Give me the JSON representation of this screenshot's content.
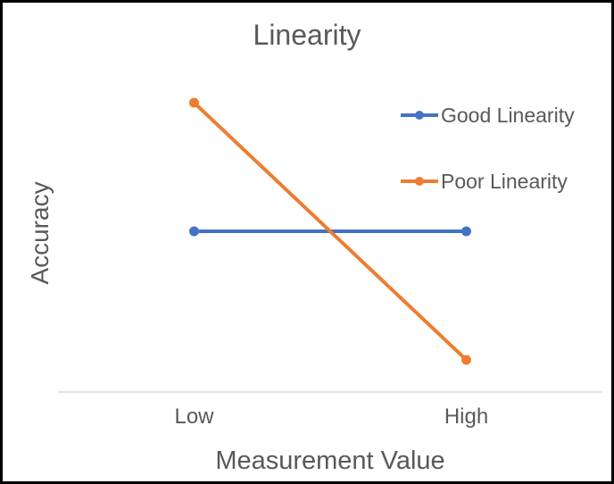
{
  "chart_data": {
    "type": "line",
    "title": "Linearity",
    "xlabel": "Measurement Value",
    "ylabel": "Accuracy",
    "categories": [
      "Low",
      "High"
    ],
    "series": [
      {
        "name": "Good Linearity",
        "values": [
          0.5,
          0.5
        ],
        "color": "#4472C4"
      },
      {
        "name": "Poor Linearity",
        "values": [
          0.9,
          0.1
        ],
        "color": "#ED7D31"
      }
    ],
    "ylim": [
      0,
      1
    ],
    "grid": false,
    "y_tick_labels": [],
    "legend_position": "inside-right",
    "marker": "circle"
  },
  "colors": {
    "text": "#595959",
    "axis_line": "#D9D9D9",
    "background": "#FFFFFF",
    "border": "#000000"
  }
}
